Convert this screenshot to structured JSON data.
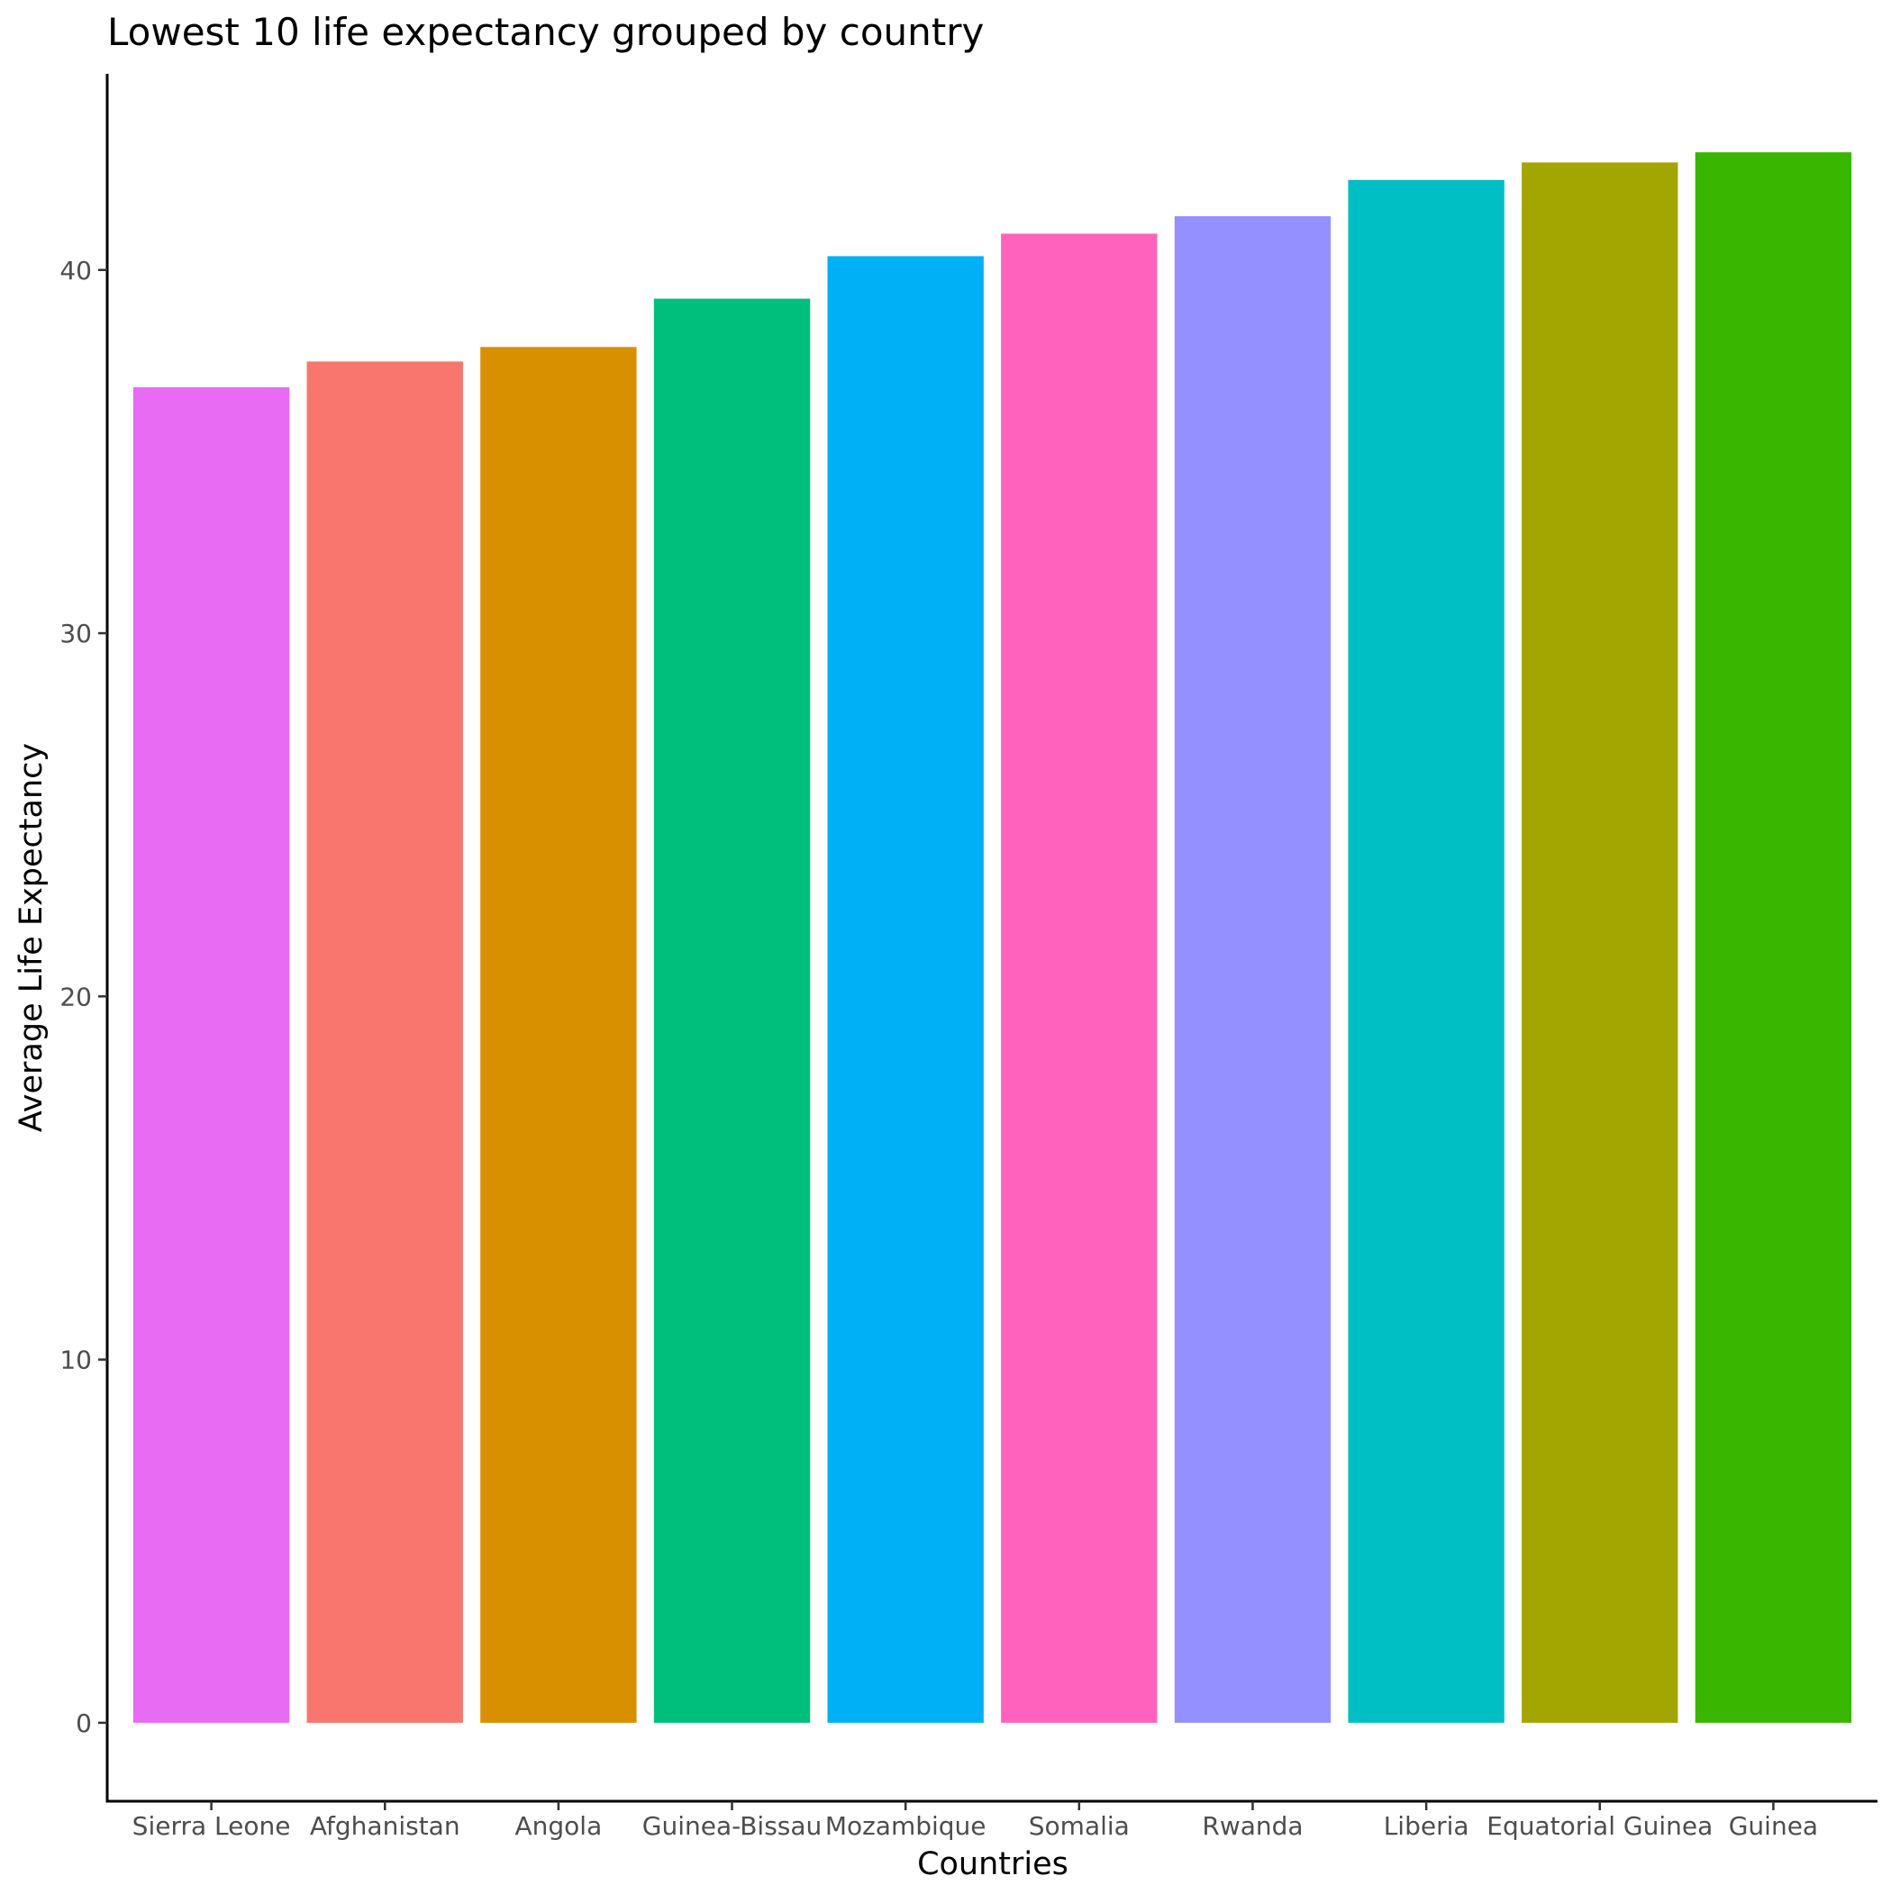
{
  "chart_data": {
    "type": "bar",
    "title": "Lowest 10 life expectancy grouped by country",
    "xlabel": "Countries",
    "ylabel": "Average Life Expectancy",
    "categories": [
      "Sierra Leone",
      "Afghanistan",
      "Angola",
      "Guinea-Bissau",
      "Mozambique",
      "Somalia",
      "Rwanda",
      "Liberia",
      "Equatorial Guinea",
      "Guinea"
    ],
    "values": [
      36.77,
      37.48,
      37.88,
      39.21,
      40.38,
      41.0,
      41.48,
      42.48,
      42.96,
      43.24
    ],
    "colors": [
      "#E76BF3",
      "#F8766D",
      "#D89000",
      "#00BF7D",
      "#00B0F6",
      "#FF62BC",
      "#9590FF",
      "#00BFC4",
      "#A3A500",
      "#39B600"
    ],
    "ylim": [
      -2.16,
      45.4
    ],
    "yticks": [
      0,
      10,
      20,
      30,
      40
    ],
    "grid": false,
    "legend": "none"
  }
}
